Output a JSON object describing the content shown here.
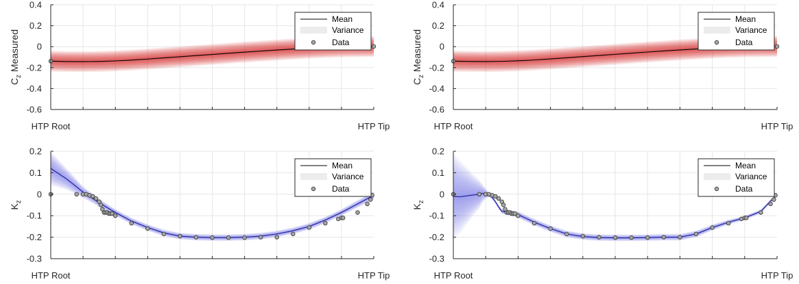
{
  "colors": {
    "axis": "#262626",
    "grid": "#e6e6e6",
    "cz_band": "#d41a1a",
    "cz_line": "#000000",
    "kz_band": "#7e7ee6",
    "kz_line": "#1a1a99",
    "marker_fill": "#a6a6a6",
    "legend_variance": "#ececec"
  },
  "legend": {
    "mean": "Mean",
    "variance": "Variance",
    "data": "Data"
  },
  "chart_data": [
    {
      "type": "line",
      "panel": "top-left",
      "ylabel_main": "C",
      "ylabel_sub": "z",
      "ylabel_rest": " Measured",
      "x_tick_labels": {
        "root": "HTP Root",
        "tip": "HTP Tip"
      },
      "xlim": [
        0,
        1
      ],
      "ylim": [
        -0.6,
        0.4
      ],
      "yticks": [
        -0.6,
        -0.4,
        -0.2,
        0,
        0.2,
        0.4
      ],
      "ytick_labels": [
        "-0.6",
        "-0.4",
        "-0.2",
        "0",
        "0.2",
        "0.4"
      ],
      "grid": true,
      "legend_position": "top-right",
      "band_kind": "wide",
      "series": [
        {
          "kind": "mean",
          "x": [
            0,
            0.05,
            0.1,
            0.15,
            0.2,
            0.25,
            0.3,
            0.35,
            0.4,
            0.45,
            0.5,
            0.55,
            0.6,
            0.65,
            0.7,
            0.75,
            0.8,
            0.85,
            0.9,
            0.95,
            1.0
          ],
          "y": [
            -0.138,
            -0.142,
            -0.143,
            -0.141,
            -0.136,
            -0.128,
            -0.118,
            -0.107,
            -0.096,
            -0.085,
            -0.074,
            -0.063,
            -0.052,
            -0.042,
            -0.032,
            -0.023,
            -0.014,
            -0.007,
            -0.002,
            0.0,
            0.002
          ],
          "std": [
            0.05,
            0.05,
            0.05,
            0.05,
            0.05,
            0.05,
            0.05,
            0.05,
            0.05,
            0.05,
            0.05,
            0.05,
            0.05,
            0.05,
            0.05,
            0.05,
            0.05,
            0.05,
            0.05,
            0.05,
            0.05
          ]
        },
        {
          "kind": "data",
          "x": [
            0,
            1.0
          ],
          "y": [
            -0.138,
            0.002
          ]
        }
      ]
    },
    {
      "type": "line",
      "panel": "top-right",
      "ylabel_main": "C",
      "ylabel_sub": "z",
      "ylabel_rest": " Measured",
      "x_tick_labels": {
        "root": "HTP Root",
        "tip": "HTP Tip"
      },
      "xlim": [
        0,
        1
      ],
      "ylim": [
        -0.6,
        0.4
      ],
      "yticks": [
        -0.6,
        -0.4,
        -0.2,
        0,
        0.2,
        0.4
      ],
      "ytick_labels": [
        "-0.6",
        "-0.4",
        "-0.2",
        "0",
        "0.2",
        "0.4"
      ],
      "grid": true,
      "legend_position": "top-right",
      "band_kind": "wide",
      "series": [
        {
          "kind": "mean",
          "x": [
            0,
            0.05,
            0.1,
            0.15,
            0.2,
            0.25,
            0.3,
            0.35,
            0.4,
            0.45,
            0.5,
            0.55,
            0.6,
            0.65,
            0.7,
            0.75,
            0.8,
            0.85,
            0.9,
            0.95,
            1.0
          ],
          "y": [
            -0.138,
            -0.141,
            -0.142,
            -0.14,
            -0.135,
            -0.127,
            -0.117,
            -0.106,
            -0.095,
            -0.084,
            -0.073,
            -0.062,
            -0.051,
            -0.041,
            -0.031,
            -0.022,
            -0.013,
            -0.006,
            -0.001,
            0.001,
            0.002
          ],
          "std": [
            0.05,
            0.05,
            0.05,
            0.05,
            0.05,
            0.05,
            0.05,
            0.05,
            0.05,
            0.05,
            0.05,
            0.05,
            0.05,
            0.05,
            0.05,
            0.05,
            0.05,
            0.05,
            0.05,
            0.05,
            0.05
          ]
        },
        {
          "kind": "data",
          "x": [
            0,
            1.0
          ],
          "y": [
            -0.138,
            0.002
          ]
        }
      ]
    },
    {
      "type": "line",
      "panel": "bottom-left",
      "ylabel_main": "K",
      "ylabel_sub": "z",
      "ylabel_rest": "",
      "x_tick_labels": {
        "root": "HTP Root",
        "tip": "HTP Tip"
      },
      "xlim": [
        0,
        1
      ],
      "ylim": [
        -0.3,
        0.2
      ],
      "yticks": [
        -0.3,
        -0.2,
        -0.1,
        0,
        0.1,
        0.2
      ],
      "ytick_labels": [
        "-0.3",
        "-0.2",
        "-0.1",
        "0",
        "0.1",
        "0.2"
      ],
      "grid": true,
      "legend_position": "top-right",
      "band_kind": "narrow",
      "series": [
        {
          "kind": "mean",
          "x": [
            0,
            0.05,
            0.1,
            0.15,
            0.2,
            0.25,
            0.3,
            0.35,
            0.4,
            0.45,
            0.5,
            0.55,
            0.6,
            0.65,
            0.7,
            0.75,
            0.8,
            0.85,
            0.9,
            0.95,
            1.0
          ],
          "y": [
            0.12,
            0.07,
            0.01,
            -0.04,
            -0.085,
            -0.125,
            -0.155,
            -0.18,
            -0.195,
            -0.2,
            -0.202,
            -0.202,
            -0.2,
            -0.195,
            -0.185,
            -0.17,
            -0.15,
            -0.12,
            -0.085,
            -0.045,
            -0.005
          ],
          "std": [
            0.04,
            0.025,
            0.014,
            0.01,
            0.008,
            0.008,
            0.008,
            0.008,
            0.008,
            0.008,
            0.008,
            0.008,
            0.008,
            0.008,
            0.008,
            0.008,
            0.008,
            0.008,
            0.008,
            0.009,
            0.01
          ]
        },
        {
          "kind": "data",
          "x": [
            0,
            0.08,
            0.1,
            0.11,
            0.12,
            0.13,
            0.14,
            0.15,
            0.155,
            0.16,
            0.165,
            0.17,
            0.175,
            0.18,
            0.185,
            0.19,
            0.2,
            0.25,
            0.3,
            0.35,
            0.4,
            0.45,
            0.5,
            0.55,
            0.6,
            0.65,
            0.7,
            0.75,
            0.8,
            0.85,
            0.89,
            0.9,
            0.905,
            0.95,
            0.98,
            0.99,
            0.995
          ],
          "y": [
            0.0,
            0.0,
            0.0,
            0.0,
            -0.005,
            -0.01,
            -0.02,
            -0.035,
            -0.05,
            -0.07,
            -0.085,
            -0.085,
            -0.085,
            -0.09,
            -0.09,
            -0.09,
            -0.1,
            -0.135,
            -0.16,
            -0.185,
            -0.195,
            -0.2,
            -0.202,
            -0.202,
            -0.202,
            -0.2,
            -0.2,
            -0.185,
            -0.155,
            -0.135,
            -0.115,
            -0.11,
            -0.11,
            -0.085,
            -0.045,
            -0.025,
            -0.005
          ]
        }
      ]
    },
    {
      "type": "line",
      "panel": "bottom-right",
      "ylabel_main": "K",
      "ylabel_sub": "z",
      "ylabel_rest": "",
      "x_tick_labels": {
        "root": "HTP Root",
        "tip": "HTP Tip"
      },
      "xlim": [
        0,
        1
      ],
      "ylim": [
        -0.3,
        0.2
      ],
      "yticks": [
        -0.3,
        -0.2,
        -0.1,
        0,
        0.1,
        0.2
      ],
      "ytick_labels": [
        "-0.3",
        "-0.2",
        "-0.1",
        "0",
        "0.1",
        "0.2"
      ],
      "grid": true,
      "legend_position": "top-right",
      "band_kind": "cone",
      "series": [
        {
          "kind": "mean",
          "x": [
            0,
            0.02,
            0.04,
            0.06,
            0.08,
            0.09,
            0.1,
            0.11,
            0.12,
            0.13,
            0.14,
            0.15,
            0.17,
            0.2,
            0.25,
            0.3,
            0.35,
            0.4,
            0.45,
            0.5,
            0.55,
            0.6,
            0.65,
            0.7,
            0.75,
            0.8,
            0.85,
            0.9,
            0.95,
            1.0
          ],
          "y": [
            -0.01,
            -0.012,
            -0.008,
            -0.004,
            0.0,
            0.004,
            0.003,
            -0.003,
            -0.015,
            -0.035,
            -0.06,
            -0.08,
            -0.085,
            -0.095,
            -0.13,
            -0.16,
            -0.185,
            -0.197,
            -0.202,
            -0.203,
            -0.203,
            -0.202,
            -0.2,
            -0.2,
            -0.185,
            -0.155,
            -0.13,
            -0.11,
            -0.08,
            0.0
          ],
          "std": [
            0.1,
            0.085,
            0.068,
            0.05,
            0.034,
            0.022,
            0.012,
            0.006,
            0.005,
            0.005,
            0.005,
            0.006,
            0.007,
            0.008,
            0.008,
            0.008,
            0.008,
            0.008,
            0.008,
            0.008,
            0.008,
            0.008,
            0.008,
            0.008,
            0.008,
            0.007,
            0.006,
            0.005,
            0.005,
            0.004
          ]
        },
        {
          "kind": "data",
          "x": [
            0,
            0.08,
            0.1,
            0.11,
            0.12,
            0.13,
            0.14,
            0.15,
            0.155,
            0.16,
            0.165,
            0.17,
            0.175,
            0.18,
            0.185,
            0.19,
            0.2,
            0.25,
            0.3,
            0.35,
            0.4,
            0.45,
            0.5,
            0.55,
            0.6,
            0.65,
            0.7,
            0.75,
            0.8,
            0.85,
            0.89,
            0.9,
            0.905,
            0.95,
            0.98,
            0.99,
            0.995
          ],
          "y": [
            0.0,
            0.0,
            0.0,
            0.0,
            -0.005,
            -0.01,
            -0.02,
            -0.035,
            -0.05,
            -0.07,
            -0.085,
            -0.085,
            -0.085,
            -0.09,
            -0.09,
            -0.09,
            -0.1,
            -0.135,
            -0.16,
            -0.185,
            -0.195,
            -0.2,
            -0.202,
            -0.202,
            -0.202,
            -0.2,
            -0.2,
            -0.185,
            -0.155,
            -0.135,
            -0.115,
            -0.11,
            -0.11,
            -0.085,
            -0.045,
            -0.025,
            -0.005
          ]
        }
      ]
    }
  ]
}
